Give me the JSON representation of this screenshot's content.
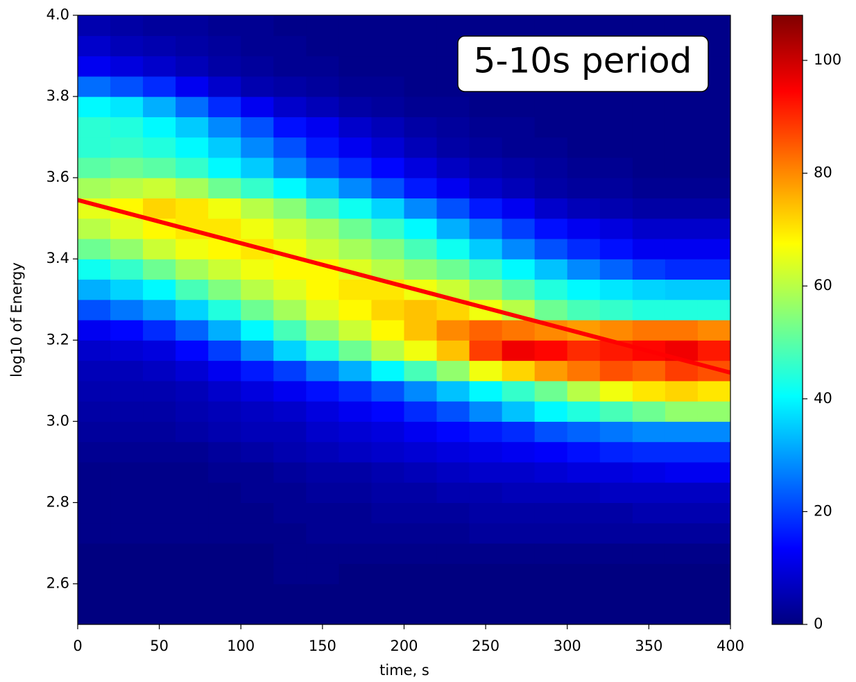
{
  "chart_data": {
    "type": "heatmap",
    "xlabel": "time, s",
    "ylabel": "log10 of Energy",
    "annotation": "5-10s period",
    "x": [
      0,
      20,
      40,
      60,
      80,
      100,
      120,
      140,
      160,
      180,
      200,
      220,
      240,
      260,
      280,
      300,
      320,
      340,
      360,
      380,
      400
    ],
    "y": [
      2.5,
      2.55,
      2.6,
      2.65,
      2.7,
      2.75,
      2.8,
      2.85,
      2.9,
      2.95,
      3.0,
      3.05,
      3.1,
      3.15,
      3.2,
      3.25,
      3.3,
      3.35,
      3.4,
      3.45,
      3.5,
      3.55,
      3.6,
      3.65,
      3.7,
      3.75,
      3.8,
      3.85,
      3.9,
      3.95,
      4.0
    ],
    "values": [
      [
        0,
        0,
        0,
        0,
        0,
        0,
        0,
        0,
        0,
        0,
        0,
        0,
        0,
        0,
        0,
        0,
        0,
        0,
        0,
        0
      ],
      [
        0,
        0,
        0,
        0,
        0,
        0,
        0,
        0,
        0,
        0,
        0,
        0,
        0,
        0,
        0,
        0,
        0,
        0,
        0,
        0
      ],
      [
        0,
        0,
        0,
        0,
        0,
        0,
        1,
        1,
        0,
        0,
        0,
        0,
        0,
        0,
        0,
        0,
        0,
        0,
        0,
        0
      ],
      [
        0,
        0,
        0,
        0,
        0,
        0,
        1,
        1,
        1,
        1,
        1,
        1,
        1,
        1,
        1,
        1,
        1,
        1,
        1,
        1
      ],
      [
        1,
        1,
        1,
        1,
        1,
        1,
        1,
        2,
        2,
        2,
        2,
        2,
        3,
        3,
        3,
        3,
        3,
        3,
        3,
        3
      ],
      [
        1,
        1,
        1,
        1,
        1,
        1,
        2,
        2,
        2,
        3,
        3,
        3,
        4,
        4,
        4,
        4,
        4,
        5,
        5,
        5
      ],
      [
        1,
        1,
        1,
        1,
        1,
        2,
        2,
        3,
        3,
        4,
        4,
        5,
        5,
        6,
        6,
        6,
        7,
        7,
        7,
        7
      ],
      [
        1,
        1,
        1,
        1,
        2,
        2,
        3,
        4,
        4,
        5,
        6,
        7,
        8,
        8,
        9,
        10,
        10,
        11,
        12,
        12
      ],
      [
        2,
        2,
        2,
        2,
        3,
        4,
        5,
        6,
        7,
        8,
        9,
        10,
        11,
        12,
        13,
        15,
        17,
        18,
        18,
        18
      ],
      [
        3,
        3,
        3,
        4,
        5,
        6,
        6,
        8,
        9,
        10,
        12,
        14,
        16,
        18,
        22,
        24,
        26,
        28,
        28,
        28
      ],
      [
        4,
        4,
        4,
        5,
        6,
        7,
        8,
        10,
        12,
        14,
        18,
        22,
        28,
        34,
        40,
        44,
        48,
        52,
        56,
        56
      ],
      [
        5,
        5,
        5,
        6,
        8,
        10,
        12,
        15,
        18,
        22,
        28,
        34,
        40,
        46,
        52,
        60,
        66,
        70,
        72,
        70
      ],
      [
        6,
        6,
        7,
        9,
        12,
        16,
        20,
        26,
        32,
        40,
        48,
        56,
        66,
        72,
        78,
        82,
        86,
        84,
        88,
        86
      ],
      [
        8,
        9,
        10,
        14,
        20,
        28,
        36,
        44,
        52,
        60,
        66,
        74,
        88,
        96,
        94,
        90,
        92,
        94,
        96,
        92
      ],
      [
        12,
        14,
        18,
        24,
        32,
        40,
        48,
        56,
        62,
        68,
        74,
        80,
        84,
        82,
        80,
        78,
        80,
        82,
        82,
        80
      ],
      [
        22,
        26,
        30,
        36,
        44,
        52,
        58,
        64,
        68,
        72,
        74,
        72,
        66,
        60,
        52,
        48,
        46,
        44,
        44,
        44
      ],
      [
        32,
        36,
        40,
        48,
        54,
        60,
        64,
        68,
        70,
        70,
        66,
        62,
        56,
        50,
        44,
        40,
        38,
        36,
        35,
        35
      ],
      [
        42,
        46,
        52,
        58,
        62,
        66,
        68,
        68,
        64,
        60,
        56,
        52,
        46,
        40,
        34,
        28,
        24,
        20,
        18,
        18
      ],
      [
        52,
        56,
        62,
        66,
        68,
        70,
        66,
        62,
        58,
        54,
        48,
        42,
        35,
        28,
        22,
        18,
        15,
        12,
        12,
        12
      ],
      [
        60,
        64,
        68,
        70,
        70,
        66,
        62,
        58,
        52,
        46,
        40,
        32,
        26,
        20,
        15,
        12,
        10,
        8,
        8,
        8
      ],
      [
        65,
        68,
        72,
        70,
        66,
        60,
        55,
        48,
        42,
        36,
        28,
        22,
        16,
        12,
        8,
        6,
        5,
        4,
        4,
        4
      ],
      [
        58,
        60,
        62,
        58,
        52,
        46,
        40,
        34,
        28,
        22,
        16,
        12,
        8,
        6,
        4,
        3,
        3,
        2,
        2,
        2
      ],
      [
        50,
        52,
        50,
        46,
        40,
        35,
        28,
        22,
        18,
        14,
        10,
        7,
        5,
        4,
        3,
        2,
        2,
        1,
        1,
        1
      ],
      [
        45,
        46,
        44,
        40,
        35,
        28,
        22,
        16,
        12,
        9,
        6,
        4,
        3,
        2,
        2,
        1,
        1,
        1,
        1,
        1
      ],
      [
        45,
        44,
        40,
        35,
        28,
        22,
        15,
        12,
        8,
        6,
        4,
        3,
        2,
        2,
        1,
        1,
        1,
        1,
        1,
        1
      ],
      [
        40,
        38,
        32,
        25,
        18,
        12,
        8,
        6,
        4,
        3,
        2,
        2,
        1,
        1,
        1,
        1,
        1,
        1,
        1,
        1
      ],
      [
        25,
        22,
        18,
        12,
        8,
        5,
        4,
        3,
        2,
        2,
        1,
        1,
        1,
        1,
        1,
        1,
        1,
        1,
        1,
        1
      ],
      [
        12,
        10,
        8,
        6,
        4,
        3,
        2,
        2,
        1,
        1,
        1,
        1,
        1,
        1,
        1,
        1,
        1,
        1,
        1,
        1
      ],
      [
        8,
        6,
        5,
        4,
        3,
        2,
        2,
        1,
        1,
        1,
        1,
        1,
        1,
        1,
        1,
        1,
        1,
        1,
        1,
        1
      ],
      [
        5,
        4,
        3,
        3,
        2,
        2,
        1,
        1,
        1,
        1,
        1,
        1,
        1,
        1,
        1,
        1,
        1,
        1,
        1,
        1
      ]
    ],
    "colormap": "jet",
    "clim": [
      0,
      108
    ],
    "cticks": [
      0,
      20,
      40,
      60,
      80,
      100
    ],
    "line": {
      "x": [
        0,
        400
      ],
      "y": [
        3.545,
        3.12
      ],
      "color": "#ff0000"
    },
    "xlim": [
      0,
      400
    ],
    "ylim": [
      2.5,
      4.0
    ],
    "xticks": [
      0,
      50,
      100,
      150,
      200,
      250,
      300,
      350,
      400
    ],
    "yticks": [
      2.6,
      2.8,
      {
        "value": 3.0,
        "label": "3.0"
      },
      3.2,
      3.4,
      3.6,
      3.8,
      {
        "value": 4.0,
        "label": "4.0"
      }
    ]
  }
}
